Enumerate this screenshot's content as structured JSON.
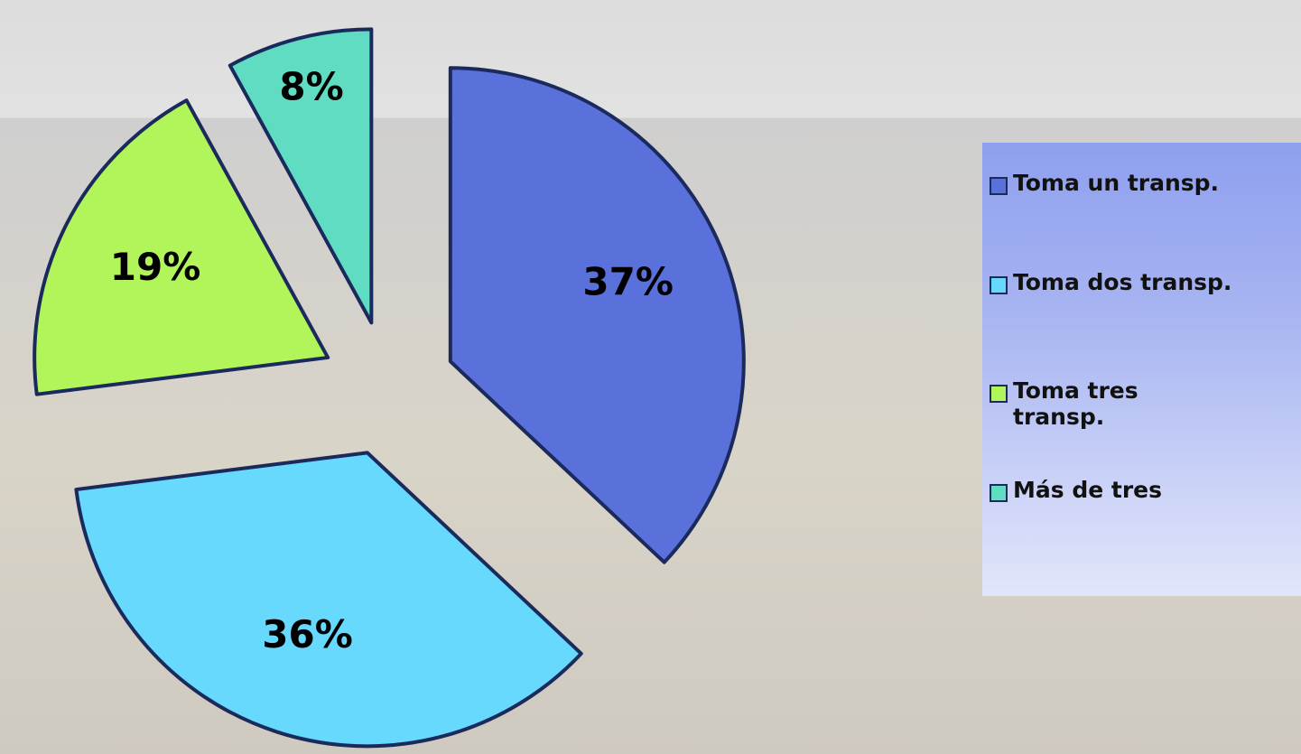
{
  "chart_data": {
    "type": "pie",
    "categories": [
      "Toma un transp.",
      "Toma dos transp.",
      "Toma tres transp.",
      "Más de tres"
    ],
    "values": [
      37,
      36,
      19,
      8
    ],
    "value_labels": [
      "37%",
      "36%",
      "19%",
      "8%"
    ],
    "colors": [
      "#5a70da",
      "#66d9fd",
      "#b2f55a",
      "#5fdcc2"
    ],
    "legend": "right"
  }
}
